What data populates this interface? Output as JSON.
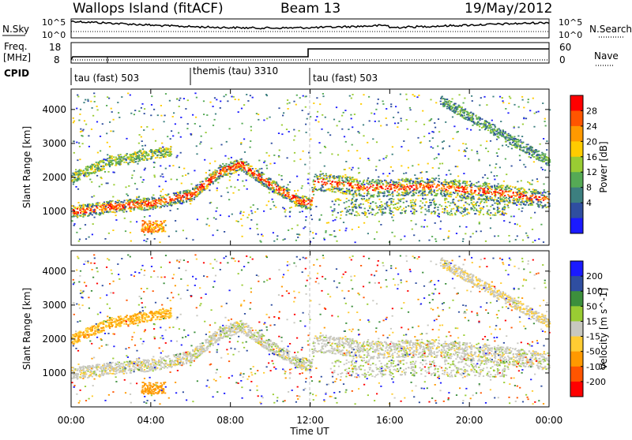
{
  "header": {
    "site": "Wallops Island (fitACF)",
    "beam": "Beam 13",
    "date": "19/May/2012"
  },
  "top_panels": {
    "nsky_label": "N.Sky",
    "nsearch_label": "N.Search",
    "freq_label_1": "Freq.",
    "freq_label_2": "[MHz]",
    "nave_label": "Nave",
    "cpid_label": "CPID",
    "noise_ticks_left": [
      "10^5",
      "10^0"
    ],
    "noise_ticks_right": [
      "10^5",
      "10^0"
    ],
    "freq_ticks": [
      "18",
      "8"
    ],
    "nave_ticks": [
      "60",
      "0"
    ],
    "cpid_segments": [
      {
        "label": "tau (fast) 503",
        "start_hr": 0,
        "end_hr": 6
      },
      {
        "label": "themis (tau) 3310",
        "start_hr": 6,
        "end_hr": 12
      },
      {
        "label": "tau (fast) 503",
        "start_hr": 12,
        "end_hr": 24
      }
    ]
  },
  "chart_data": [
    {
      "type": "heatmap",
      "name": "power",
      "ylabel": "Slant Range [km]",
      "ylim": [
        0,
        4600
      ],
      "yticks": [
        "1000",
        "2000",
        "3000",
        "4000"
      ],
      "xlim_hr": [
        0,
        24
      ],
      "xticks": [
        "00:00",
        "04:00",
        "08:00",
        "12:00",
        "16:00",
        "20:00",
        "00:00"
      ],
      "colorbar": {
        "label": "Power [dB]",
        "ticks": [
          "28",
          "24",
          "20",
          "16",
          "12",
          "8",
          "4"
        ],
        "colors": [
          "#ff0000",
          "#ff5500",
          "#ff9900",
          "#ffcc00",
          "#99cc33",
          "#55aa55",
          "#3c7f7f",
          "#2f4ea0",
          "#1a1aff"
        ]
      },
      "features": [
        {
          "desc": "main echo band",
          "points_hr_km": [
            [
              0,
              1000
            ],
            [
              2,
              1150
            ],
            [
              4,
              1250
            ],
            [
              6,
              1500
            ],
            [
              7.5,
              2200
            ],
            [
              8.5,
              2400
            ],
            [
              10,
              1800
            ],
            [
              11.5,
              1300
            ],
            [
              12,
              1250
            ],
            [
              12.2,
              1900
            ],
            [
              15,
              1700
            ],
            [
              18,
              1750
            ],
            [
              21,
              1600
            ],
            [
              24,
              1350
            ]
          ]
        },
        {
          "desc": "upper band",
          "points_hr_km": [
            [
              0,
              2000
            ],
            [
              2,
              2500
            ],
            [
              4,
              2700
            ],
            [
              5,
              2800
            ]
          ]
        }
      ]
    },
    {
      "type": "heatmap",
      "name": "velocity",
      "ylabel": "Slant Range [km]",
      "ylim": [
        0,
        4600
      ],
      "yticks": [
        "1000",
        "2000",
        "3000",
        "4000"
      ],
      "xlim_hr": [
        0,
        24
      ],
      "xticks": [
        "00:00",
        "04:00",
        "08:00",
        "12:00",
        "16:00",
        "20:00",
        "00:00"
      ],
      "xlabel": "Time UT",
      "colorbar": {
        "label": "Velocity [m s^-1]",
        "ticks": [
          "200",
          "100",
          "50",
          "15",
          "-15",
          "-50",
          "-100",
          "-200"
        ],
        "colors": [
          "#1a1aff",
          "#2f4ea0",
          "#3c8f3c",
          "#99cc33",
          "#c8c8c0",
          "#ffcc33",
          "#ff9900",
          "#ff5500",
          "#ff0000"
        ]
      }
    }
  ]
}
